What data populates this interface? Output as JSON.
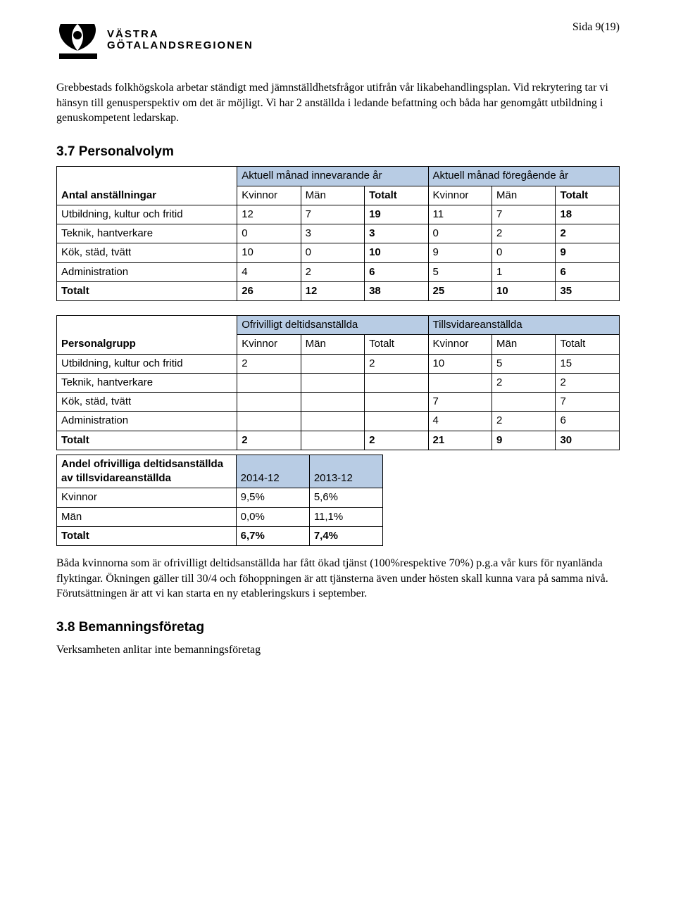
{
  "page_number": "Sida 9(19)",
  "logo": {
    "line1": "VÄSTRA",
    "line2": "GÖTALANDSREGIONEN"
  },
  "intro_paragraph": "Grebbestads folkhögskola arbetar ständigt med jämnställdhetsfrågor utifrån vår likabehandlingsplan. Vid rekrytering tar vi hänsyn till genusperspektiv om det är möjligt. Vi har 2 anställda i ledande befattning och båda har genomgått utbildning i genuskompetent ledarskap.",
  "section_37_title": "3.7 Personalvolym",
  "table1": {
    "row_label_header": "Antal anställningar",
    "group1_header": "Aktuell månad innevarande år",
    "group2_header": "Aktuell månad föregående år",
    "sub_headers": [
      "Kvinnor",
      "Män",
      "Totalt",
      "Kvinnor",
      "Män",
      "Totalt"
    ],
    "bold_sub_cols": [
      2,
      5
    ],
    "rows": [
      {
        "label": "Utbildning, kultur och fritid",
        "cells": [
          "12",
          "7",
          "19",
          "11",
          "7",
          "18"
        ],
        "bold_cells": [
          2,
          5
        ]
      },
      {
        "label": "Teknik, hantverkare",
        "cells": [
          "0",
          "3",
          "3",
          "0",
          "2",
          "2"
        ],
        "bold_cells": [
          2,
          5
        ]
      },
      {
        "label": "Kök, städ, tvätt",
        "cells": [
          "10",
          "0",
          "10",
          "9",
          "0",
          "9"
        ],
        "bold_cells": [
          2,
          5
        ]
      },
      {
        "label": "Administration",
        "cells": [
          "4",
          "2",
          "6",
          "5",
          "1",
          "6"
        ],
        "bold_cells": [
          2,
          5
        ]
      },
      {
        "label": "Totalt",
        "label_bold": true,
        "cells": [
          "26",
          "12",
          "38",
          "25",
          "10",
          "35"
        ],
        "bold_cells": [
          0,
          1,
          2,
          3,
          4,
          5
        ]
      }
    ]
  },
  "table2": {
    "row_label_header": "Personalgrupp",
    "group1_header": "Ofrivilligt deltidsanställda",
    "group2_header": "Tillsvidareanställda",
    "sub_headers": [
      "Kvinnor",
      "Män",
      "Totalt",
      "Kvinnor",
      "Män",
      "Totalt"
    ],
    "rows": [
      {
        "label": "Utbildning, kultur och fritid",
        "cells": [
          "2",
          "",
          "2",
          "10",
          "5",
          "15"
        ]
      },
      {
        "label": "Teknik, hantverkare",
        "cells": [
          "",
          "",
          "",
          "",
          "2",
          "2"
        ]
      },
      {
        "label": "Kök, städ, tvätt",
        "cells": [
          "",
          "",
          "",
          "7",
          "",
          "7"
        ]
      },
      {
        "label": "Administration",
        "cells": [
          "",
          "",
          "",
          "4",
          "2",
          "6"
        ]
      },
      {
        "label": "Totalt",
        "label_bold": true,
        "cells": [
          "2",
          "",
          "2",
          "21",
          "9",
          "30"
        ],
        "bold_cells": [
          0,
          1,
          2,
          3,
          4,
          5
        ]
      }
    ]
  },
  "table3": {
    "row_label_header": "Andel ofrivilliga deltidsanställda av tillsvidareanställda",
    "col_headers": [
      "2014-12",
      "2013-12"
    ],
    "rows": [
      {
        "label": "Kvinnor",
        "cells": [
          "9,5%",
          "5,6%"
        ]
      },
      {
        "label": "Män",
        "cells": [
          "0,0%",
          "11,1%"
        ]
      },
      {
        "label": "Totalt",
        "label_bold": true,
        "cells": [
          "6,7%",
          "7,4%"
        ],
        "bold_cells": [
          0,
          1
        ]
      }
    ]
  },
  "mid_paragraph": "Båda kvinnorna som är ofrivilligt deltidsanställda har fått ökad tjänst (100%respektive 70%) p.g.a vår kurs för nyanlända flyktingar. Ökningen gäller till 30/4 och föhoppningen är att tjänsterna även under hösten skall kunna vara på samma nivå. Förutsättningen är att vi kan starta en ny etableringskurs i september.",
  "section_38_title": "3.8 Bemanningsföretag",
  "footer_line": "Verksamheten anlitar inte bemanningsföretag",
  "colors": {
    "header_blue": "#b8cce4",
    "border": "#000000",
    "text": "#000000",
    "background": "#ffffff"
  }
}
